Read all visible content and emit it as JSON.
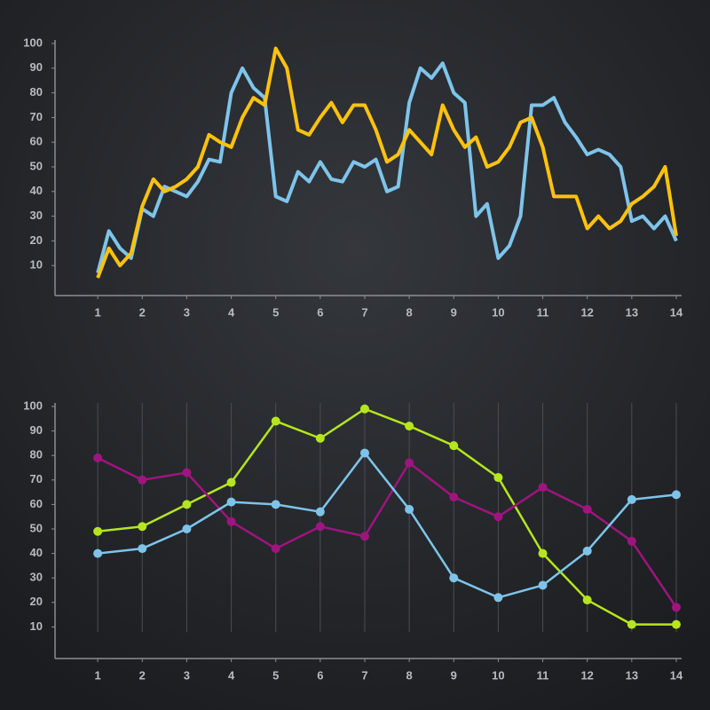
{
  "chart_data": [
    {
      "type": "line",
      "x": [
        1,
        1.25,
        1.5,
        1.75,
        2,
        2.25,
        2.5,
        2.75,
        3,
        3.25,
        3.5,
        3.75,
        4,
        4.25,
        4.5,
        4.75,
        5,
        5.25,
        5.5,
        5.75,
        6,
        6.25,
        6.5,
        6.75,
        7,
        7.25,
        7.5,
        7.75,
        8,
        8.25,
        8.5,
        8.75,
        9,
        9.25,
        9.5,
        9.75,
        10,
        10.25,
        10.5,
        10.75,
        11,
        11.25,
        11.5,
        11.75,
        12,
        12.25,
        12.5,
        12.75,
        13,
        13.25,
        13.5,
        13.75,
        14
      ],
      "series": [
        {
          "color": "#7ec4ea",
          "values": [
            7,
            24,
            17,
            13,
            33,
            30,
            42,
            40,
            38,
            44,
            53,
            52,
            80,
            90,
            82,
            78,
            38,
            36,
            48,
            44,
            52,
            45,
            44,
            52,
            50,
            53,
            40,
            42,
            76,
            90,
            86,
            92,
            80,
            76,
            30,
            35,
            13,
            18,
            30,
            75,
            75,
            78,
            68,
            62,
            55,
            57,
            55,
            50,
            28,
            30,
            25,
            30,
            20
          ]
        },
        {
          "color": "#ffc20e",
          "values": [
            5,
            17,
            10,
            15,
            34,
            45,
            40,
            42,
            45,
            50,
            63,
            60,
            58,
            70,
            78,
            75,
            98,
            90,
            65,
            63,
            70,
            76,
            68,
            75,
            75,
            65,
            52,
            55,
            65,
            60,
            55,
            75,
            65,
            58,
            62,
            50,
            52,
            58,
            68,
            70,
            58,
            38,
            38,
            38,
            25,
            30,
            25,
            28,
            35,
            38,
            42,
            50,
            22
          ]
        }
      ],
      "xlim": [
        0,
        14.1
      ],
      "xticks": [
        1,
        2,
        3,
        4,
        5,
        6,
        7,
        8,
        9,
        10,
        11,
        12,
        13,
        14
      ],
      "ylim": [
        0,
        100
      ],
      "yticks": [
        10,
        20,
        30,
        40,
        50,
        60,
        70,
        80,
        90,
        100
      ],
      "grid": false,
      "markers": false
    },
    {
      "type": "line",
      "x": [
        1,
        2,
        3,
        4,
        5,
        6,
        7,
        8,
        9,
        10,
        11,
        12,
        13,
        14
      ],
      "series": [
        {
          "color": "#b5e61d",
          "values": [
            49,
            51,
            60,
            69,
            94,
            87,
            99,
            92,
            84,
            71,
            40,
            21,
            11,
            11
          ]
        },
        {
          "color": "#a0147f",
          "values": [
            79,
            70,
            73,
            53,
            42,
            51,
            47,
            77,
            63,
            55,
            67,
            58,
            45,
            18
          ]
        },
        {
          "color": "#7ec4ea",
          "values": [
            40,
            42,
            50,
            61,
            60,
            57,
            81,
            58,
            30,
            22,
            27,
            41,
            62,
            64
          ]
        }
      ],
      "xlim": [
        0,
        14.1
      ],
      "xticks": [
        1,
        2,
        3,
        4,
        5,
        6,
        7,
        8,
        9,
        10,
        11,
        12,
        13,
        14
      ],
      "ylim": [
        0,
        100
      ],
      "yticks": [
        10,
        20,
        30,
        40,
        50,
        60,
        70,
        80,
        90,
        100
      ],
      "grid": true,
      "markers": true
    }
  ]
}
